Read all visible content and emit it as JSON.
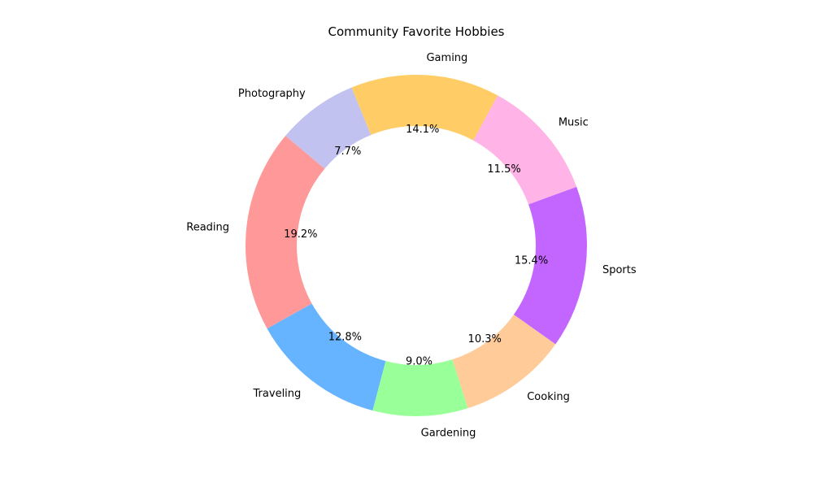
{
  "chart_data": {
    "type": "pie",
    "variant": "donut",
    "title": "Community Favorite Hobbies",
    "legend": "none",
    "slices": [
      {
        "label": "Reading",
        "percent": 19.2,
        "percent_label": "19.2%",
        "color": "#ff9999"
      },
      {
        "label": "Traveling",
        "percent": 12.8,
        "percent_label": "12.8%",
        "color": "#66b3ff"
      },
      {
        "label": "Gardening",
        "percent": 9.0,
        "percent_label": "9.0%",
        "color": "#99ff99"
      },
      {
        "label": "Cooking",
        "percent": 10.3,
        "percent_label": "10.3%",
        "color": "#ffcc99"
      },
      {
        "label": "Sports",
        "percent": 15.4,
        "percent_label": "15.4%",
        "color": "#c266ff"
      },
      {
        "label": "Music",
        "percent": 11.5,
        "percent_label": "11.5%",
        "color": "#ffb3e6"
      },
      {
        "label": "Gaming",
        "percent": 14.1,
        "percent_label": "14.1%",
        "color": "#ffcc66"
      },
      {
        "label": "Photography",
        "percent": 7.7,
        "percent_label": "7.7%",
        "color": "#c2c2f0"
      }
    ]
  }
}
